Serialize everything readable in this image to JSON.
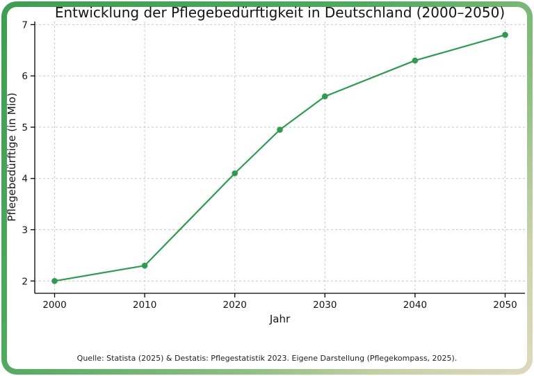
{
  "frame": {
    "border_gradient": [
      "#3d9e52",
      "#4faa5e",
      "#8dbf82",
      "#ded9bd"
    ],
    "background": "#ffffff"
  },
  "chart_data": {
    "type": "line",
    "title": "Entwicklung der Pflegebedürftigkeit in Deutschland (2000–2050)",
    "xlabel": "Jahr",
    "ylabel": "Pflegebedürftige (in Mio)",
    "x": [
      2000,
      2010,
      2020,
      2025,
      2030,
      2040,
      2050
    ],
    "values": [
      2.0,
      2.3,
      4.1,
      4.95,
      5.6,
      6.3,
      6.8
    ],
    "x_ticks": [
      2000,
      2010,
      2020,
      2030,
      2040,
      2050
    ],
    "y_ticks": [
      2,
      3,
      4,
      5,
      6,
      7
    ],
    "xlim": [
      1997.8,
      2052.2
    ],
    "ylim": [
      1.76,
      7.06
    ],
    "grid": true,
    "grid_style": "dashed",
    "legend": "none",
    "line_color": "#2a9d4f",
    "marker": "circle"
  },
  "footer": {
    "source": "Quelle: Statista (2025) & Destatis: Pflegestatistik 2023. Eigene Darstellung (Pflegekompass, 2025)."
  }
}
